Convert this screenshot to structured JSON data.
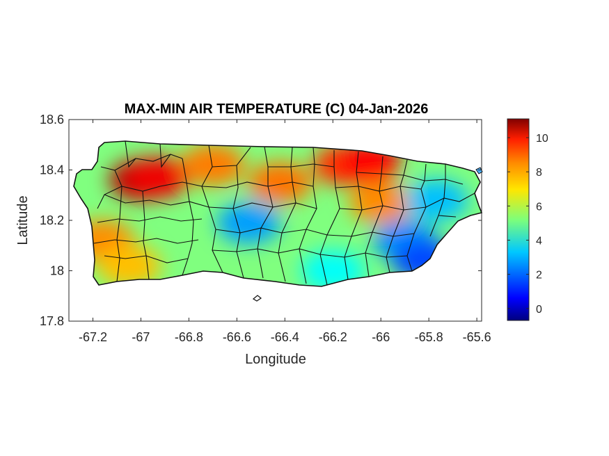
{
  "title": "MAX-MIN AIR TEMPERATURE (C) 04-Jan-2026",
  "xlabel": "Longitude",
  "ylabel": "Latitude",
  "xaxis": {
    "range": [
      -67.3,
      -65.58
    ],
    "ticks": [
      -67.2,
      -67,
      -66.8,
      -66.6,
      -66.4,
      -66.2,
      -66,
      -65.8,
      -65.6
    ],
    "tick_labels": [
      "-67.2",
      "-67",
      "-66.8",
      "-66.6",
      "-66.4",
      "-66.2",
      "-66",
      "-65.8",
      "-65.6"
    ]
  },
  "yaxis": {
    "range": [
      17.8,
      18.6
    ],
    "ticks": [
      17.8,
      18,
      18.2,
      18.4,
      18.6
    ],
    "tick_labels": [
      "17.8",
      "18",
      "18.2",
      "18.4",
      "18.6"
    ]
  },
  "colorbar": {
    "range": [
      -0.7,
      11.1
    ],
    "ticks": [
      0,
      2,
      4,
      6,
      8,
      10
    ],
    "tick_labels": [
      "0",
      "2",
      "4",
      "6",
      "8",
      "10"
    ],
    "colormap": "jet"
  },
  "map": {
    "region": "Puerto Rico",
    "grid": false,
    "field_hotspots": [
      {
        "lon": -67.0,
        "lat": 18.36,
        "value": 10.5
      },
      {
        "lon": -66.93,
        "lat": 18.37,
        "value": 9.8
      },
      {
        "lon": -66.7,
        "lat": 18.42,
        "value": 8.2
      },
      {
        "lon": -66.42,
        "lat": 18.35,
        "value": 8.3
      },
      {
        "lon": -66.15,
        "lat": 18.42,
        "value": 9.0
      },
      {
        "lon": -66.05,
        "lat": 18.43,
        "value": 9.6
      },
      {
        "lon": -66.0,
        "lat": 18.27,
        "value": 8.0
      },
      {
        "lon": -67.16,
        "lat": 18.12,
        "value": 8.0
      },
      {
        "lon": -67.05,
        "lat": 18.02,
        "value": 7.4
      },
      {
        "lon": -66.55,
        "lat": 18.19,
        "value": 2.6
      },
      {
        "lon": -65.9,
        "lat": 18.12,
        "value": 2.4
      },
      {
        "lon": -65.82,
        "lat": 18.04,
        "value": 1.6
      },
      {
        "lon": -65.77,
        "lat": 18.28,
        "value": 3.0
      },
      {
        "lon": -66.2,
        "lat": 18.0,
        "value": 3.8
      }
    ],
    "background_value": 5.2
  }
}
